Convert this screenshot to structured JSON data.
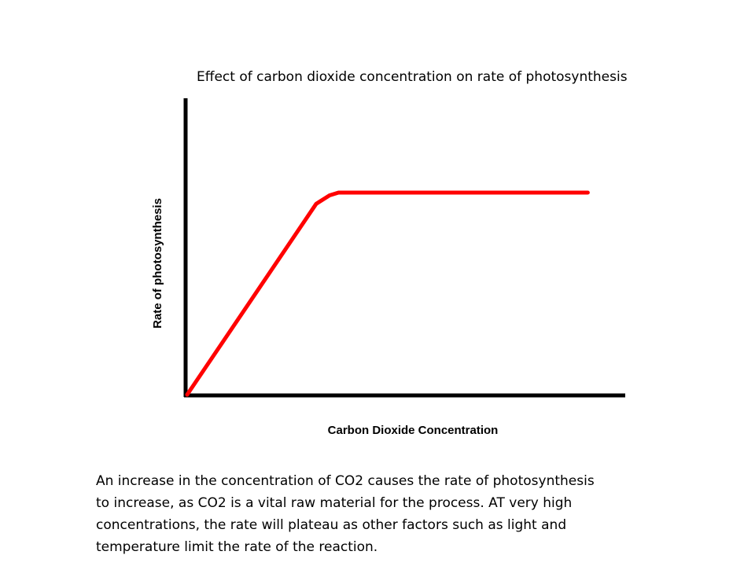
{
  "slide": {
    "title": "Effect of carbon dioxide concentration on rate of photosynthesis",
    "caption_lines": [
      "An increase in the concentration of CO2 causes the rate of photosynthesis",
      "to increase, as CO2 is a vital raw material for the process. AT very high",
      "concentrations, the rate will plateau as other factors such as light and",
      "temperature limit the rate of the reaction."
    ]
  },
  "chart_data": {
    "type": "line",
    "title": "",
    "xlabel": "Carbon Dioxide Concentration",
    "ylabel": "Rate of photosynthesis",
    "xlim": [
      0,
      10
    ],
    "ylim": [
      0,
      10
    ],
    "grid": false,
    "legend": "none",
    "series": [
      {
        "color": "#ff0000",
        "x": [
          0,
          2.9,
          3.2,
          3.4,
          4.4,
          9.0
        ],
        "y": [
          0,
          6.8,
          7.1,
          7.2,
          7.2,
          7.2
        ]
      }
    ]
  }
}
